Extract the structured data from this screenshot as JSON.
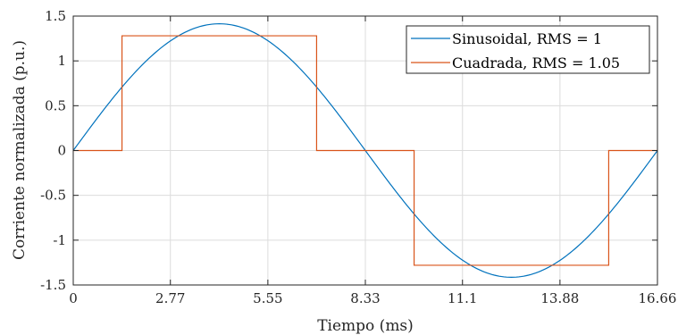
{
  "chart_data": {
    "type": "line",
    "xlabel": "Tiempo (ms)",
    "ylabel": "Corriente normalizada (p.u.)",
    "xlim": [
      0,
      16.66
    ],
    "ylim": [
      -1.5,
      1.5
    ],
    "xticks": [
      0,
      2.77,
      5.55,
      8.33,
      11.1,
      13.88,
      16.66
    ],
    "xtick_labels": [
      "0",
      "2.77",
      "5.55",
      "8.33",
      "11.1",
      "13.88",
      "16.66"
    ],
    "yticks": [
      1.5,
      1,
      0.5,
      0,
      -0.5,
      -1,
      -1.5
    ],
    "ytick_labels": [
      "1.5",
      "1",
      "0.5",
      "0",
      "-0.5",
      "-1",
      "-1.5"
    ],
    "grid": true,
    "legend_position": "top-right",
    "colors": {
      "sine": "#0072BD",
      "square": "#D95319"
    },
    "series": [
      {
        "name": "Sinusoidal, RMS = 1",
        "kind": "sine",
        "amplitude": 1.414,
        "period_ms": 16.66
      },
      {
        "name": "Cuadrada, RMS = 1.05",
        "kind": "step",
        "x": [
          0,
          1.39,
          1.39,
          6.94,
          6.94,
          9.72,
          9.72,
          15.27,
          15.27,
          16.66
        ],
        "y": [
          0,
          0,
          1.28,
          1.28,
          0,
          0,
          -1.28,
          -1.28,
          0,
          0
        ]
      }
    ]
  }
}
